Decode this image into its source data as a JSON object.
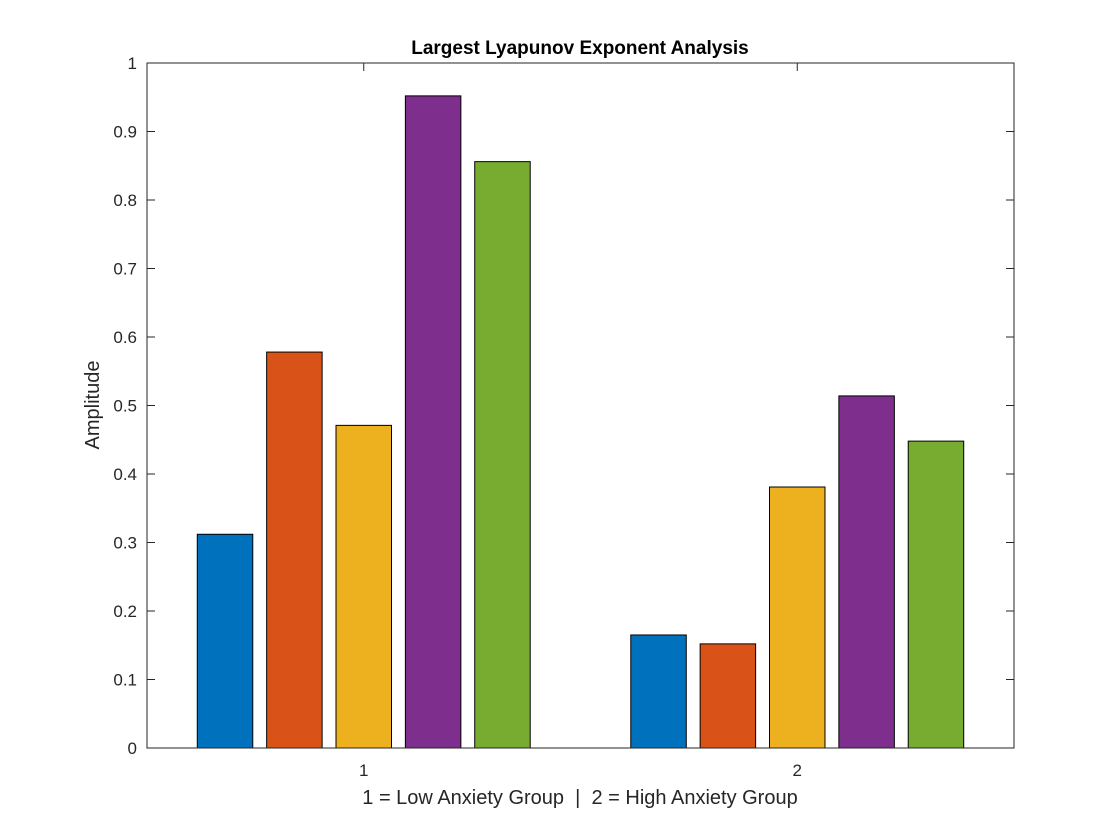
{
  "chart_data": {
    "type": "bar",
    "title": "Largest Lyapunov Exponent Analysis",
    "xlabel": "1 = Low Anxiety Group  |  2 = High Anxiety Group",
    "ylabel": "Amplitude",
    "categories": [
      "1",
      "2"
    ],
    "ylim": [
      0,
      1
    ],
    "yticks": [
      "0",
      "0.1",
      "0.2",
      "0.3",
      "0.4",
      "0.5",
      "0.6",
      "0.7",
      "0.8",
      "0.9",
      "1"
    ],
    "grid": false,
    "series": [
      {
        "color": "#0072BD",
        "values": [
          0.312,
          0.165
        ]
      },
      {
        "color": "#D95319",
        "values": [
          0.578,
          0.152
        ]
      },
      {
        "color": "#EDB120",
        "values": [
          0.471,
          0.381
        ]
      },
      {
        "color": "#7E2F8E",
        "values": [
          0.952,
          0.514
        ]
      },
      {
        "color": "#77AC30",
        "values": [
          0.856,
          0.448
        ]
      }
    ]
  }
}
